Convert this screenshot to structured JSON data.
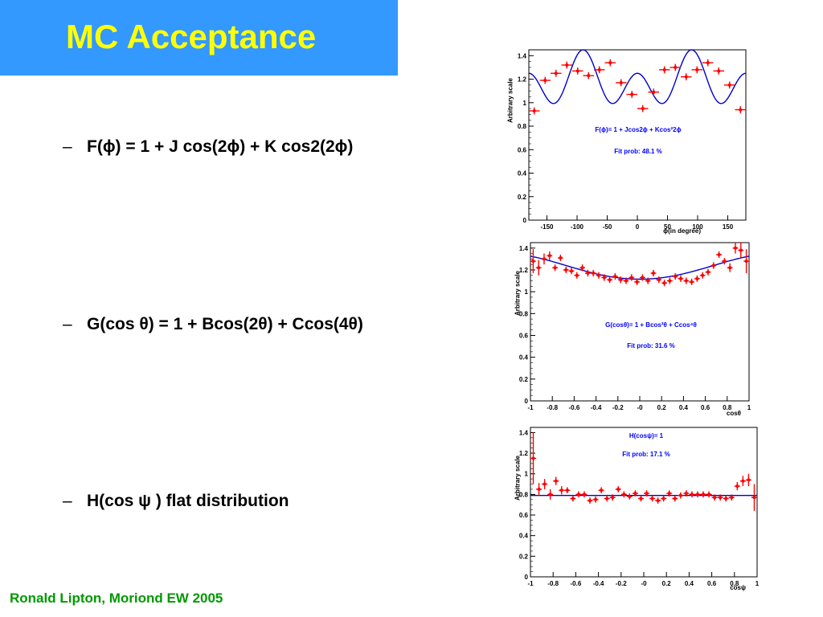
{
  "slide": {
    "title": "MC Acceptance",
    "footer": "Ronald Lipton, Moriond EW 2005",
    "bullets": [
      {
        "dash": "–",
        "text": "F(ϕ) = 1 + J cos(2ϕ) + K cos2(2ϕ)"
      },
      {
        "dash": "–",
        "text": "G(cos θ) = 1 + Bcos(2θ) + Ccos(4θ)"
      },
      {
        "dash": "–",
        "text": "H(cos ψ )  flat distribution"
      }
    ]
  },
  "colors": {
    "title_bg": "#3399ff",
    "title_text": "#ffff00",
    "footer_text": "#009900",
    "points": "#ff0000",
    "fit": "#0000cc",
    "annotation": "#0000ff"
  },
  "chart_data": [
    {
      "type": "scatter",
      "ylabel": "Arbitrary scale",
      "xlabel": "ϕ(in degree)",
      "xlim": [
        -180,
        180
      ],
      "ylim": [
        0,
        1.45
      ],
      "xticks": [
        -150,
        -100,
        -50,
        0,
        50,
        100,
        150
      ],
      "yticks": [
        0,
        0.2,
        0.4,
        0.6,
        0.8,
        1,
        1.2,
        1.4
      ],
      "annotations": [
        "F(ϕ)= 1 + Jcos2ϕ + Kcos²2ϕ",
        "Fit prob: 48.1 %"
      ],
      "fit": {
        "function": "1 + J cos(2x) + K cos^2(2x)",
        "J": -0.1,
        "K": 0.35
      },
      "series": [
        {
          "x": [
            -171,
            -153,
            -135,
            -117,
            -99,
            -81,
            -63,
            -45,
            -27,
            -9,
            9,
            27,
            45,
            63,
            81,
            99,
            117,
            135,
            153,
            171
          ],
          "y": [
            0.93,
            1.19,
            1.25,
            1.32,
            1.27,
            1.23,
            1.28,
            1.34,
            1.17,
            1.07,
            0.95,
            1.09,
            1.28,
            1.3,
            1.22,
            1.28,
            1.34,
            1.27,
            1.15,
            0.94
          ],
          "err": [
            0.03,
            0.03,
            0.03,
            0.03,
            0.03,
            0.03,
            0.03,
            0.03,
            0.03,
            0.03,
            0.03,
            0.03,
            0.03,
            0.03,
            0.03,
            0.03,
            0.03,
            0.03,
            0.03,
            0.03
          ]
        }
      ]
    },
    {
      "type": "scatter",
      "ylabel": "Arbitrary scale",
      "xlabel": "cosθ",
      "xlim": [
        -1,
        1
      ],
      "ylim": [
        0,
        1.45
      ],
      "xticks": [
        -1,
        -0.8,
        -0.6,
        -0.4,
        -0.2,
        0,
        0.2,
        0.4,
        0.6,
        0.8,
        1
      ],
      "xtick_labels": [
        "-1",
        "-0.8",
        "-0.6",
        "-0.4",
        "-0.2",
        "-0",
        "0.2",
        "0.4",
        "0.6",
        "0.8",
        "1"
      ],
      "yticks": [
        0,
        0.2,
        0.4,
        0.6,
        0.8,
        1,
        1.2,
        1.4
      ],
      "annotations": [
        "G(cosθ)= 1 + Bcos²θ + Ccos⁴θ",
        "Fit prob: 31.6 %"
      ],
      "fit": {
        "function": "a + b x^2 + c x^4",
        "a": 1.115,
        "b": 0.33,
        "c": -0.12
      },
      "series": [
        {
          "x": [
            -0.975,
            -0.925,
            -0.875,
            -0.825,
            -0.775,
            -0.725,
            -0.675,
            -0.625,
            -0.575,
            -0.525,
            -0.475,
            -0.425,
            -0.375,
            -0.325,
            -0.275,
            -0.225,
            -0.175,
            -0.125,
            -0.075,
            -0.025,
            0.025,
            0.075,
            0.125,
            0.175,
            0.225,
            0.275,
            0.325,
            0.375,
            0.425,
            0.475,
            0.525,
            0.575,
            0.625,
            0.675,
            0.725,
            0.775,
            0.825,
            0.875,
            0.925,
            0.975
          ],
          "y": [
            1.28,
            1.22,
            1.3,
            1.33,
            1.22,
            1.31,
            1.2,
            1.19,
            1.15,
            1.22,
            1.17,
            1.17,
            1.15,
            1.13,
            1.11,
            1.14,
            1.11,
            1.1,
            1.13,
            1.09,
            1.13,
            1.1,
            1.17,
            1.11,
            1.08,
            1.1,
            1.14,
            1.12,
            1.1,
            1.09,
            1.12,
            1.15,
            1.18,
            1.24,
            1.34,
            1.28,
            1.22,
            1.4,
            1.38,
            1.28
          ],
          "err": [
            0.11,
            0.07,
            0.05,
            0.04,
            0.03,
            0.03,
            0.03,
            0.03,
            0.03,
            0.03,
            0.03,
            0.03,
            0.03,
            0.03,
            0.03,
            0.03,
            0.03,
            0.03,
            0.03,
            0.03,
            0.03,
            0.03,
            0.03,
            0.03,
            0.03,
            0.03,
            0.03,
            0.03,
            0.03,
            0.03,
            0.03,
            0.03,
            0.03,
            0.03,
            0.03,
            0.03,
            0.04,
            0.05,
            0.07,
            0.11
          ]
        }
      ]
    },
    {
      "type": "scatter",
      "ylabel": "Arbitrary scale",
      "xlabel": "cosψ",
      "xlim": [
        -1,
        1
      ],
      "ylim": [
        0,
        1.45
      ],
      "xticks": [
        -1,
        -0.8,
        -0.6,
        -0.4,
        -0.2,
        0,
        0.2,
        0.4,
        0.6,
        0.8,
        1
      ],
      "xtick_labels": [
        "-1",
        "-0.8",
        "-0.6",
        "-0.4",
        "-0.2",
        "-0",
        "0.2",
        "0.4",
        "0.6",
        "0.8",
        "1"
      ],
      "yticks": [
        0,
        0.2,
        0.4,
        0.6,
        0.8,
        1,
        1.2,
        1.4
      ],
      "annotations": [
        "H(cosψ)= 1",
        "Fit prob: 17.1 %"
      ],
      "fit": {
        "function": "constant",
        "value": 0.79
      },
      "series": [
        {
          "x": [
            -0.975,
            -0.925,
            -0.875,
            -0.825,
            -0.775,
            -0.725,
            -0.675,
            -0.625,
            -0.575,
            -0.525,
            -0.475,
            -0.425,
            -0.375,
            -0.325,
            -0.275,
            -0.225,
            -0.175,
            -0.125,
            -0.075,
            -0.025,
            0.025,
            0.075,
            0.125,
            0.175,
            0.225,
            0.275,
            0.325,
            0.375,
            0.425,
            0.475,
            0.525,
            0.575,
            0.625,
            0.675,
            0.725,
            0.775,
            0.825,
            0.875,
            0.925,
            0.975
          ],
          "y": [
            1.15,
            0.85,
            0.9,
            0.8,
            0.93,
            0.84,
            0.84,
            0.76,
            0.8,
            0.8,
            0.74,
            0.75,
            0.84,
            0.76,
            0.77,
            0.85,
            0.8,
            0.78,
            0.81,
            0.76,
            0.81,
            0.76,
            0.74,
            0.76,
            0.81,
            0.76,
            0.79,
            0.81,
            0.8,
            0.8,
            0.8,
            0.8,
            0.77,
            0.77,
            0.76,
            0.77,
            0.88,
            0.93,
            0.94,
            0.77
          ],
          "err": [
            0.25,
            0.06,
            0.05,
            0.05,
            0.04,
            0.04,
            0.03,
            0.03,
            0.03,
            0.03,
            0.03,
            0.03,
            0.03,
            0.03,
            0.03,
            0.03,
            0.03,
            0.03,
            0.03,
            0.03,
            0.03,
            0.03,
            0.03,
            0.03,
            0.03,
            0.03,
            0.03,
            0.03,
            0.03,
            0.03,
            0.03,
            0.03,
            0.03,
            0.03,
            0.03,
            0.03,
            0.04,
            0.05,
            0.06,
            0.13
          ]
        }
      ]
    }
  ]
}
